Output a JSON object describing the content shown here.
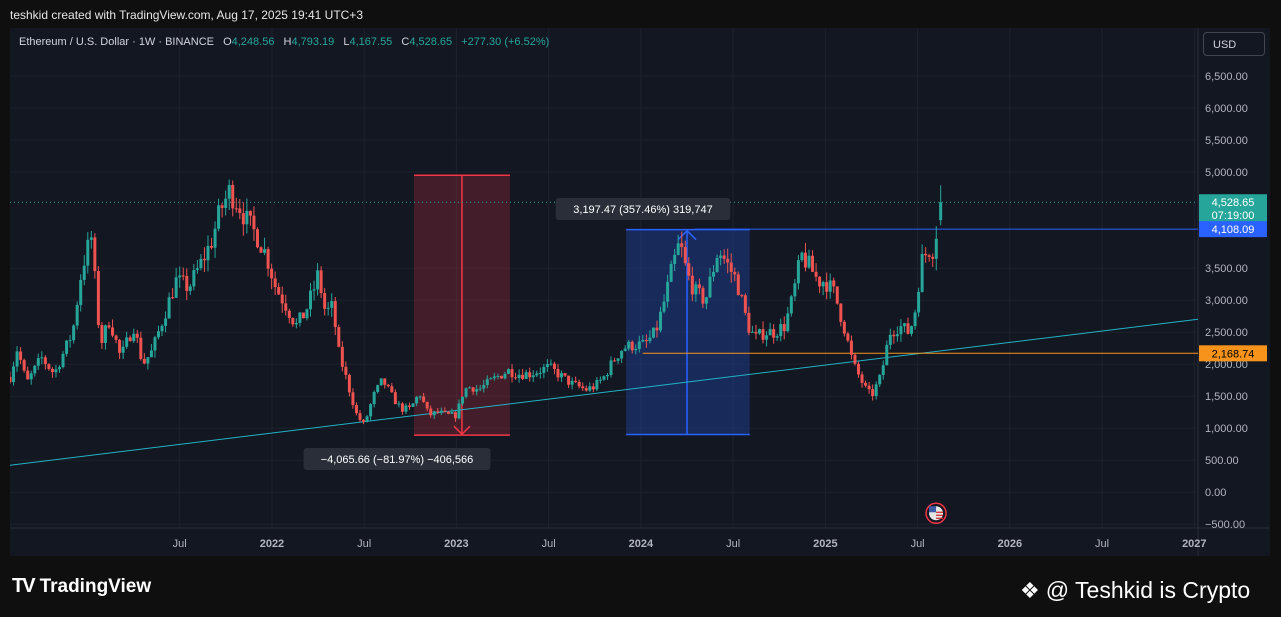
{
  "header": {
    "credit": "teshkid created with TradingView.com, Aug 17, 2025 19:41 UTC+3"
  },
  "legend": {
    "symbol": "Ethereum / U.S. Dollar · 1W · BINANCE",
    "open_label": "O",
    "open": "4,248.56",
    "high_label": "H",
    "high": "4,793.19",
    "low_label": "L",
    "low": "4,167.55",
    "close_label": "C",
    "close": "4,528.65",
    "change": "+277.30 (+6.52%)"
  },
  "currency_button": "USD",
  "colors": {
    "bg": "#131722",
    "up": "#26a69a",
    "down": "#ef5350",
    "trendline": "#22b3c6",
    "resistance": "#2962ff",
    "support": "#f7931a",
    "drop_box": "#f23645",
    "rise_box": "#2962ff"
  },
  "price_badges": {
    "current": "4,528.65",
    "countdown": "07:19:00",
    "resistance": "4,108.09",
    "support": "2,168.74"
  },
  "measurements": {
    "drop": "−4,065.66 (−81.97%) −406,566",
    "rise": "3,197.47 (357.46%) 319,747"
  },
  "footer": {
    "brand": "TradingView",
    "watermark": "@ Teshkid is Crypto"
  },
  "chart_data": {
    "type": "candlestick",
    "y_tick_labels": [
      "6,500.00",
      "6,000.00",
      "5,500.00",
      "5,000.00",
      "3,500.00",
      "3,000.00",
      "2,500.00",
      "2,000.00",
      "1,500.00",
      "1,000.00",
      "500.00",
      "0.00",
      "−500.00"
    ],
    "y_ticks": [
      6500,
      6000,
      5500,
      5000,
      3500,
      3000,
      2500,
      2000,
      1500,
      1000,
      500,
      0,
      -500
    ],
    "x_tick_labels": [
      "Jul",
      "2022",
      "Jul",
      "2023",
      "Jul",
      "2024",
      "Jul",
      "2025",
      "Jul",
      "2026",
      "Jul",
      "2027"
    ],
    "x_ticks": [
      2021.5,
      2022.0,
      2022.5,
      2023.0,
      2023.5,
      2024.0,
      2024.5,
      2025.0,
      2025.5,
      2026.0,
      2026.5,
      2027.0
    ],
    "xlim": [
      2020.58,
      2027.02
    ],
    "ylim": [
      -560,
      7250
    ],
    "anchors": [
      [
        2020.58,
        1800
      ],
      [
        2020.62,
        2250
      ],
      [
        2020.67,
        1700
      ],
      [
        2020.75,
        2100
      ],
      [
        2020.82,
        1850
      ],
      [
        2020.92,
        2500
      ],
      [
        2020.97,
        3500
      ],
      [
        2021.02,
        4000
      ],
      [
        2021.07,
        2300
      ],
      [
        2021.12,
        2700
      ],
      [
        2021.18,
        2100
      ],
      [
        2021.25,
        2600
      ],
      [
        2021.3,
        2000
      ],
      [
        2021.35,
        2200
      ],
      [
        2021.42,
        2800
      ],
      [
        2021.48,
        3300
      ],
      [
        2021.55,
        3200
      ],
      [
        2021.62,
        3600
      ],
      [
        2021.67,
        3900
      ],
      [
        2021.72,
        4400
      ],
      [
        2021.77,
        4700
      ],
      [
        2021.82,
        4500
      ],
      [
        2021.87,
        4200
      ],
      [
        2021.92,
        4000
      ],
      [
        2021.97,
        3700
      ],
      [
        2022.02,
        3200
      ],
      [
        2022.08,
        2900
      ],
      [
        2022.13,
        2600
      ],
      [
        2022.18,
        2800
      ],
      [
        2022.23,
        3200
      ],
      [
        2022.25,
        3400
      ],
      [
        2022.29,
        2800
      ],
      [
        2022.33,
        2900
      ],
      [
        2022.36,
        2200
      ],
      [
        2022.42,
        1600
      ],
      [
        2022.46,
        1200
      ],
      [
        2022.5,
        1050
      ],
      [
        2022.55,
        1500
      ],
      [
        2022.6,
        1750
      ],
      [
        2022.65,
        1500
      ],
      [
        2022.7,
        1300
      ],
      [
        2022.75,
        1300
      ],
      [
        2022.8,
        1550
      ],
      [
        2022.85,
        1200
      ],
      [
        2022.9,
        1250
      ],
      [
        2022.95,
        1200
      ],
      [
        2023.0,
        1200
      ],
      [
        2023.04,
        1600
      ],
      [
        2023.08,
        1650
      ],
      [
        2023.12,
        1600
      ],
      [
        2023.17,
        1700
      ],
      [
        2023.22,
        1800
      ],
      [
        2023.28,
        1900
      ],
      [
        2023.33,
        1850
      ],
      [
        2023.4,
        1850
      ],
      [
        2023.45,
        1900
      ],
      [
        2023.5,
        1950
      ],
      [
        2023.55,
        1850
      ],
      [
        2023.62,
        1700
      ],
      [
        2023.7,
        1600
      ],
      [
        2023.75,
        1650
      ],
      [
        2023.8,
        1800
      ],
      [
        2023.85,
        2050
      ],
      [
        2023.9,
        2250
      ],
      [
        2023.96,
        2300
      ],
      [
        2024.02,
        2300
      ],
      [
        2024.08,
        2500
      ],
      [
        2024.12,
        2900
      ],
      [
        2024.17,
        3500
      ],
      [
        2024.21,
        3900
      ],
      [
        2024.25,
        3400
      ],
      [
        2024.3,
        3100
      ],
      [
        2024.35,
        3000
      ],
      [
        2024.42,
        3800
      ],
      [
        2024.46,
        3600
      ],
      [
        2024.52,
        3300
      ],
      [
        2024.58,
        2600
      ],
      [
        2024.62,
        2400
      ],
      [
        2024.67,
        2500
      ],
      [
        2024.72,
        2500
      ],
      [
        2024.78,
        2600
      ],
      [
        2024.82,
        3000
      ],
      [
        2024.87,
        3700
      ],
      [
        2024.92,
        3500
      ],
      [
        2024.96,
        3300
      ],
      [
        2025.0,
        3300
      ],
      [
        2025.05,
        3100
      ],
      [
        2025.1,
        2600
      ],
      [
        2025.15,
        2000
      ],
      [
        2025.22,
        1600
      ],
      [
        2025.25,
        1500
      ],
      [
        2025.3,
        1800
      ],
      [
        2025.35,
        2500
      ],
      [
        2025.4,
        2600
      ],
      [
        2025.45,
        2500
      ],
      [
        2025.48,
        2700
      ],
      [
        2025.52,
        3600
      ],
      [
        2025.56,
        3800
      ],
      [
        2025.59,
        3800
      ],
      [
        2025.62,
        4528
      ]
    ]
  },
  "annotations": {
    "trendline": [
      [
        2020.58,
        420
      ],
      [
        2027.02,
        2700
      ]
    ],
    "resistance_line": {
      "y": 4108.09,
      "from": 2024.29,
      "to": 2027.02
    },
    "support_line": {
      "y": 2168.74,
      "from": 2024.01,
      "to": 2027.02
    },
    "current_price_line": {
      "y": 4528.65
    },
    "drop_box": {
      "x1": 2022.77,
      "x2": 2023.29,
      "y_top": 4950,
      "y_bottom": 890
    },
    "rise_box": {
      "x1": 2023.92,
      "x2": 2024.59,
      "y_top": 4100,
      "y_bottom": 900
    },
    "event_marker": {
      "x": 2025.6,
      "y": -330
    }
  }
}
